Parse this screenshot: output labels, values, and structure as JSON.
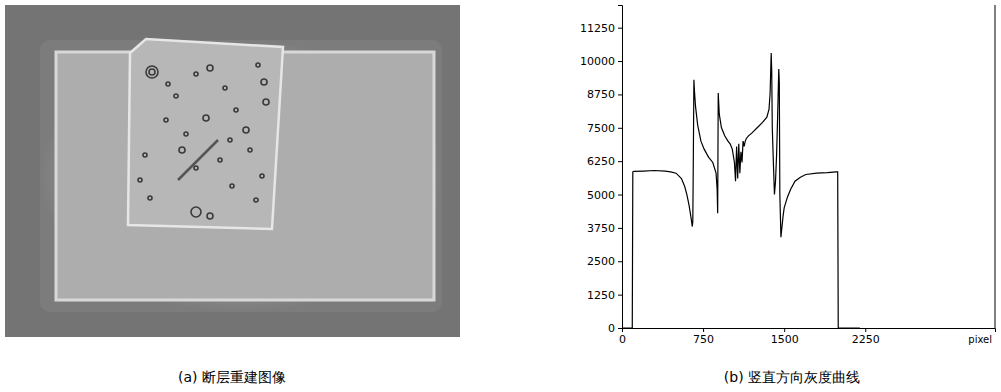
{
  "chart_data": {
    "type": "line",
    "title": "(b) 竖直方向灰度曲线",
    "x_label": "pixel",
    "x": [
      0,
      80,
      95,
      100,
      110,
      200,
      300,
      400,
      450,
      500,
      550,
      580,
      600,
      620,
      640,
      650,
      655,
      660,
      665,
      670,
      680,
      700,
      730,
      760,
      800,
      840,
      870,
      880,
      885,
      890,
      895,
      900,
      920,
      950,
      980,
      1000,
      1020,
      1040,
      1050,
      1060,
      1070,
      1080,
      1090,
      1100,
      1110,
      1120,
      1130,
      1140,
      1150,
      1170,
      1200,
      1250,
      1300,
      1340,
      1360,
      1370,
      1380,
      1385,
      1390,
      1400,
      1410,
      1420,
      1430,
      1440,
      1450,
      1455,
      1460,
      1470,
      1480,
      1490,
      1500,
      1530,
      1560,
      1600,
      1650,
      1700,
      1800,
      1900,
      1980,
      1990,
      1995,
      2000,
      2050,
      2100,
      2200
    ],
    "values": [
      0,
      0,
      0,
      5850,
      5870,
      5880,
      5900,
      5880,
      5850,
      5800,
      5600,
      5300,
      5000,
      4600,
      4100,
      3800,
      4000,
      6500,
      9300,
      8900,
      8300,
      7600,
      7000,
      6700,
      6400,
      6200,
      5800,
      5200,
      4300,
      8800,
      8400,
      8000,
      7500,
      7200,
      7000,
      6900,
      6700,
      6200,
      5500,
      6800,
      5600,
      6900,
      5800,
      6600,
      6200,
      7000,
      6800,
      7000,
      7100,
      7200,
      7300,
      7500,
      7700,
      7900,
      8200,
      8800,
      10300,
      9600,
      7500,
      6200,
      5000,
      5500,
      6500,
      8000,
      9700,
      9200,
      5000,
      3400,
      3800,
      4200,
      4500,
      4900,
      5200,
      5500,
      5650,
      5750,
      5800,
      5820,
      5850,
      5850,
      5850,
      0,
      0,
      0,
      0
    ],
    "color": "#000000",
    "xlim": [
      0,
      3450
    ],
    "xticks": [
      0,
      750,
      1500,
      2250
    ],
    "ylim": [
      0,
      12100
    ],
    "yticks": [
      0,
      1250,
      2500,
      3750,
      5000,
      6250,
      7500,
      8750,
      10000,
      11250
    ],
    "grid": false
  },
  "image_panel": {
    "caption": "(a) 断层重建图像"
  }
}
